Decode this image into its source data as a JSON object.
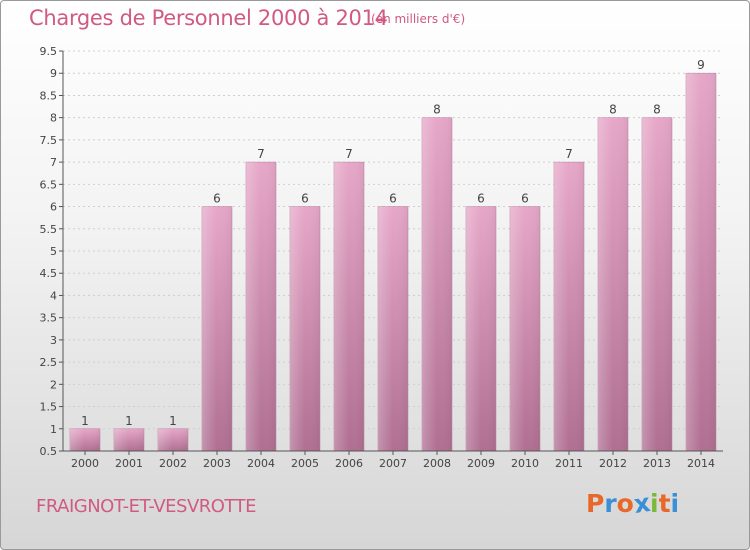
{
  "title": "Charges de Personnel 2000 à 2014",
  "unit": "(en milliers d'€)",
  "commune": "FRAIGNOT-ET-VESVROTTE",
  "logo": {
    "letters": [
      "P",
      "r",
      "o",
      "x",
      "i",
      "t",
      "i"
    ],
    "colors": [
      "#e8682a",
      "#3a8fd6",
      "#e8682a",
      "#3a8fd6",
      "#7cb83a",
      "#e8682a",
      "#3a8fd6"
    ]
  },
  "chart_data": {
    "type": "bar",
    "categories": [
      "2000",
      "2001",
      "2002",
      "2003",
      "2004",
      "2005",
      "2006",
      "2007",
      "2008",
      "2009",
      "2010",
      "2011",
      "2012",
      "2013",
      "2014"
    ],
    "values": [
      1,
      1,
      1,
      6,
      7,
      6,
      7,
      6,
      8,
      6,
      6,
      7,
      8,
      8,
      9
    ],
    "ylim": [
      0.5,
      9.5
    ],
    "yticks": [
      0.5,
      1,
      1.5,
      2,
      2.5,
      3,
      3.5,
      4,
      4.5,
      5,
      5.5,
      6,
      6.5,
      7,
      7.5,
      8,
      8.5,
      9,
      9.5
    ],
    "grid": true,
    "bar_color": "#d9909f"
  }
}
